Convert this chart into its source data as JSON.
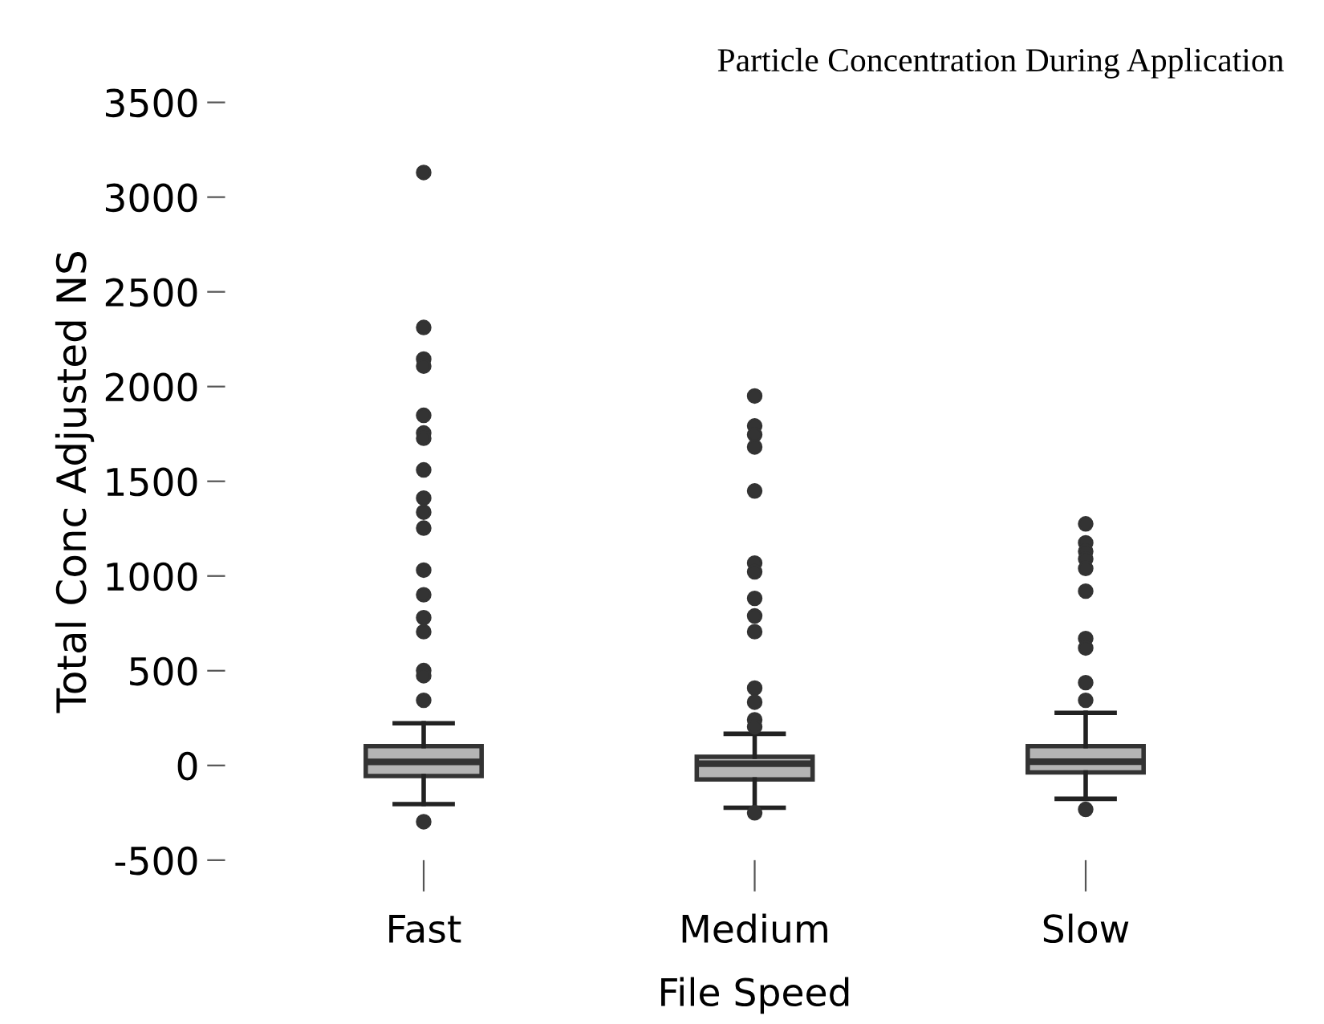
{
  "chart_data": {
    "type": "box",
    "title": "Particle Concentration During Application",
    "xlabel": "File Speed",
    "ylabel": "Total Conc Adjusted NS",
    "categories": [
      "Fast",
      "Medium",
      "Slow"
    ],
    "boxes": [
      {
        "low": -204,
        "q1": -56,
        "median": 19,
        "q3": 102,
        "high": 223,
        "outliers": [
          3130,
          2312,
          2145,
          2108,
          1848,
          1755,
          1727,
          1560,
          1411,
          1337,
          1253,
          1031,
          901,
          780,
          706,
          501,
          474,
          344,
          -297
        ]
      },
      {
        "low": -223,
        "q1": -74,
        "median": 9,
        "q3": 46,
        "high": 167,
        "outliers": [
          1950,
          1792,
          1746,
          1681,
          1449,
          1068,
          1022,
          882,
          789,
          706,
          408,
          334,
          241,
          204,
          -250
        ]
      },
      {
        "low": -176,
        "q1": -37,
        "median": 20,
        "q3": 102,
        "high": 278,
        "outliers": [
          1275,
          1175,
          1130,
          1090,
          1040,
          920,
          670,
          620,
          437,
          344,
          -232
        ]
      }
    ],
    "color": "#b4b4b4",
    "ylim": [
      -500,
      3500
    ],
    "yticks": [
      -500,
      0,
      500,
      1000,
      1500,
      2000,
      2500,
      3000,
      3500
    ],
    "grid": false
  }
}
